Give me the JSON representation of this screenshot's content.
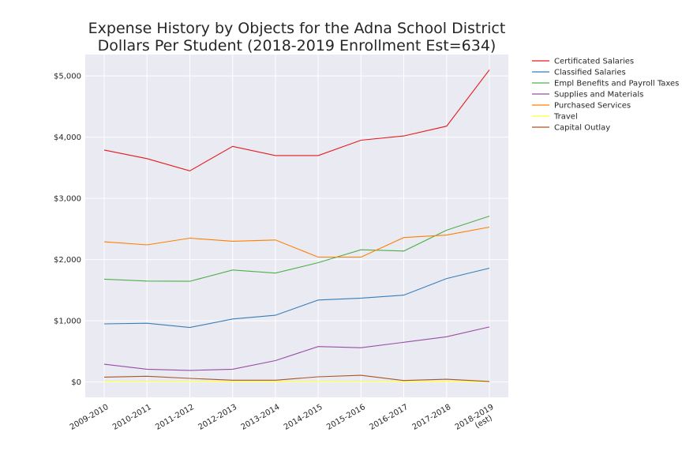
{
  "chart_data": {
    "type": "line",
    "title": "Expense History by Objects for the Adna School District",
    "subtitle": "Dollars Per Student (2018-2019 Enrollment Est=634)",
    "xlabel": "",
    "ylabel": "",
    "categories": [
      "2009-2010",
      "2010-2011",
      "2011-2012",
      "2012-2013",
      "2013-2014",
      "2014-2015",
      "2015-2016",
      "2016-2017",
      "2017-2018",
      "2018-2019 (est)"
    ],
    "category_lines": [
      [
        "2009-2010"
      ],
      [
        "2010-2011"
      ],
      [
        "2011-2012"
      ],
      [
        "2012-2013"
      ],
      [
        "2013-2014"
      ],
      [
        "2014-2015"
      ],
      [
        "2015-2016"
      ],
      [
        "2016-2017"
      ],
      [
        "2017-2018"
      ],
      [
        "2018-2019",
        "(est)"
      ]
    ],
    "ylim": [
      -250,
      5350
    ],
    "yticks": [
      0,
      1000,
      2000,
      3000,
      4000,
      5000
    ],
    "ytick_labels": [
      "$0",
      "$1,000",
      "$2,000",
      "$3,000",
      "$4,000",
      "$5,000"
    ],
    "grid": true,
    "legend_position": "outside-right",
    "series": [
      {
        "name": "Certificated Salaries",
        "color": "#e41a1c",
        "values": [
          3790,
          3650,
          3450,
          3850,
          3700,
          3700,
          3950,
          4020,
          4180,
          5100
        ]
      },
      {
        "name": "Classified Salaries",
        "color": "#377eb8",
        "values": [
          950,
          960,
          890,
          1030,
          1090,
          1340,
          1370,
          1420,
          1690,
          1860
        ]
      },
      {
        "name": "Empl Benefits and Payroll Taxes",
        "color": "#4daf4a",
        "values": [
          1680,
          1650,
          1645,
          1830,
          1780,
          1950,
          2160,
          2140,
          2480,
          2710
        ]
      },
      {
        "name": "Supplies and Materials",
        "color": "#984ea3",
        "values": [
          290,
          210,
          190,
          210,
          350,
          580,
          560,
          650,
          740,
          900
        ]
      },
      {
        "name": "Purchased Services",
        "color": "#ff7f00",
        "values": [
          2290,
          2240,
          2350,
          2300,
          2320,
          2040,
          2040,
          2360,
          2400,
          2530
        ]
      },
      {
        "name": "Travel",
        "color": "#ffff33",
        "values": [
          10,
          15,
          10,
          5,
          5,
          10,
          15,
          5,
          10,
          5
        ]
      },
      {
        "name": "Capital Outlay",
        "color": "#a65628",
        "values": [
          80,
          95,
          60,
          30,
          30,
          85,
          110,
          25,
          45,
          10
        ]
      }
    ]
  }
}
